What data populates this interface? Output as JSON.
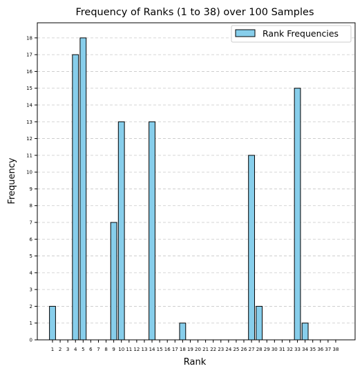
{
  "chart_data": {
    "type": "bar",
    "title": "Frequency of Ranks (1 to 38) over 100 Samples",
    "xlabel": "Rank",
    "ylabel": "Frequency",
    "categories": [
      "1",
      "2",
      "3",
      "4",
      "5",
      "6",
      "7",
      "8",
      "9",
      "10",
      "11",
      "12",
      "13",
      "14",
      "15",
      "16",
      "17",
      "18",
      "19",
      "20",
      "21",
      "22",
      "23",
      "24",
      "25",
      "26",
      "27",
      "28",
      "29",
      "30",
      "31",
      "32",
      "33",
      "34",
      "35",
      "36",
      "37",
      "38"
    ],
    "series": [
      {
        "name": "Rank Frequencies",
        "values": [
          2,
          0,
          0,
          17,
          18,
          0,
          0,
          0,
          7,
          13,
          0,
          0,
          0,
          13,
          0,
          0,
          0,
          1,
          0,
          0,
          0,
          0,
          0,
          0,
          0,
          0,
          11,
          2,
          0,
          0,
          0,
          0,
          15,
          1,
          0,
          0,
          0,
          0
        ]
      }
    ],
    "ylim": [
      0,
      18.9
    ],
    "yticks": [
      0,
      1,
      2,
      3,
      4,
      5,
      6,
      7,
      8,
      9,
      10,
      11,
      12,
      13,
      14,
      15,
      16,
      17,
      18
    ],
    "grid": "y-dashed",
    "legend_position": "top-right",
    "colors": {
      "bar_fill": "#87CEEB",
      "bar_edge": "#000000",
      "grid": "#c8c8c8"
    }
  }
}
